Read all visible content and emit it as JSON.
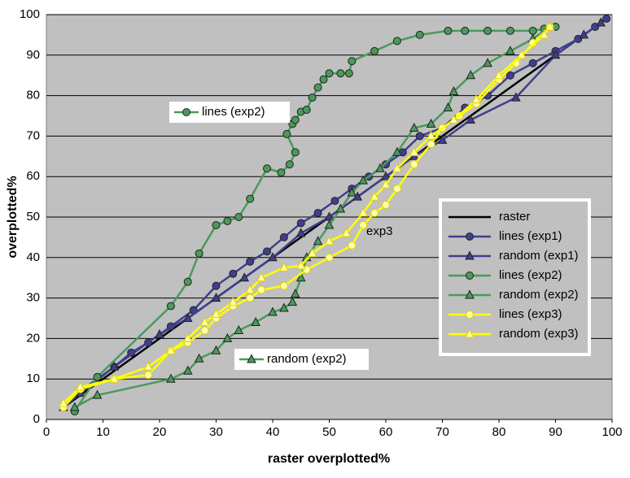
{
  "chart_data": {
    "type": "line",
    "xlabel": "raster overplotted%",
    "ylabel": "overplotted%",
    "xlim": [
      0,
      100
    ],
    "xticks": [
      0,
      10,
      20,
      30,
      40,
      50,
      60,
      70,
      80,
      90,
      100
    ],
    "ylim": [
      0,
      100
    ],
    "yticks": [
      0,
      10,
      20,
      30,
      40,
      50,
      60,
      70,
      80,
      90,
      100
    ],
    "grid": true,
    "legend": "right",
    "annotations": [
      "lines (exp2)",
      "random (exp2)",
      "exp3"
    ],
    "series": [
      {
        "name": "raster",
        "color": "#000000",
        "marker": "none",
        "x": [
          2.5,
          99
        ],
        "values": [
          2.5,
          99
        ]
      },
      {
        "name": "lines (exp1)",
        "color": "#3f3f8f",
        "marker": "circle",
        "x": [
          3,
          6,
          12,
          15,
          18,
          22,
          26,
          30,
          33,
          36,
          39,
          42,
          45,
          48,
          51,
          54,
          57,
          60,
          63,
          66,
          70,
          74,
          78,
          82,
          86,
          90,
          94,
          97,
          99
        ],
        "values": [
          3,
          7,
          13,
          16.5,
          19,
          23,
          27,
          33,
          36,
          39,
          41.5,
          45,
          48.5,
          51,
          54,
          57,
          60,
          63,
          66,
          70,
          72,
          77,
          80,
          85,
          88,
          91,
          94,
          97,
          99
        ]
      },
      {
        "name": "random (exp1)",
        "color": "#3f3f8f",
        "marker": "triangle",
        "x": [
          3,
          6,
          12,
          20,
          25,
          30,
          35,
          40,
          45,
          50,
          55,
          60,
          65,
          70,
          75,
          83,
          90,
          95,
          98
        ],
        "values": [
          3,
          6.5,
          13,
          21,
          25,
          30,
          35,
          40,
          46,
          50,
          55,
          60,
          65,
          69,
          74,
          79.5,
          90,
          95,
          98
        ]
      },
      {
        "name": "lines (exp2)",
        "color": "#4a9a5a",
        "marker": "circle",
        "x": [
          5,
          9,
          22,
          25,
          27,
          30,
          32,
          34,
          36,
          39,
          41.5,
          43,
          44,
          42.5,
          43.5,
          44,
          45,
          46,
          47,
          48,
          49,
          50,
          52,
          53.5,
          54,
          58,
          62,
          66,
          71,
          74,
          78,
          82,
          86,
          88,
          90
        ],
        "values": [
          2,
          10.5,
          28,
          34,
          41,
          48,
          49,
          50,
          54.5,
          62,
          61,
          63,
          66,
          70.5,
          73,
          74,
          76,
          76.5,
          79.5,
          82,
          84,
          85.5,
          85.5,
          85.5,
          88.5,
          91,
          93.5,
          95,
          96,
          96,
          96,
          96,
          96,
          96.5,
          97
        ]
      },
      {
        "name": "random (exp2)",
        "color": "#4a9a5a",
        "marker": "triangle",
        "x": [
          5,
          9,
          22,
          25,
          27,
          30,
          32,
          34,
          37,
          40,
          42,
          43.5,
          44,
          45,
          46,
          48,
          50,
          52,
          54,
          56,
          59,
          62,
          65,
          68,
          71,
          72,
          75,
          78,
          82,
          86,
          89
        ],
        "values": [
          3,
          6,
          10,
          12,
          15,
          17,
          20,
          22,
          24,
          26.5,
          27.5,
          29,
          31,
          35,
          40,
          44,
          48,
          52,
          56,
          59,
          62,
          66,
          72,
          73,
          77,
          81,
          85,
          88,
          91,
          94,
          97
        ]
      },
      {
        "name": "lines (exp3)",
        "color": "#ffff00",
        "marker": "circle",
        "x": [
          3,
          6,
          12,
          18,
          22,
          25,
          28,
          30,
          33,
          36,
          38,
          42,
          46,
          50,
          54,
          56,
          58,
          60,
          62,
          65,
          68,
          70,
          73,
          76,
          80,
          83,
          86,
          89
        ],
        "values": [
          3,
          7.5,
          10,
          11,
          17,
          19,
          22,
          25,
          28,
          30,
          32,
          33,
          37,
          40,
          43,
          48,
          51,
          53,
          57,
          63,
          68,
          72,
          75,
          78,
          84,
          88,
          93,
          97
        ]
      },
      {
        "name": "random (exp3)",
        "color": "#ffff00",
        "marker": "triangle",
        "x": [
          3,
          6,
          12,
          18,
          22,
          25,
          28,
          30,
          33,
          36,
          38,
          42,
          45,
          47,
          50,
          53,
          56,
          58,
          60,
          62,
          65,
          68,
          72,
          76,
          80,
          84,
          88,
          89
        ],
        "values": [
          4,
          8,
          10,
          13,
          17,
          20,
          24,
          26,
          29,
          32,
          35,
          37.5,
          38,
          41,
          44,
          46,
          51,
          55,
          58,
          62,
          66,
          70,
          74,
          79,
          85,
          90,
          95,
          97
        ]
      }
    ]
  }
}
